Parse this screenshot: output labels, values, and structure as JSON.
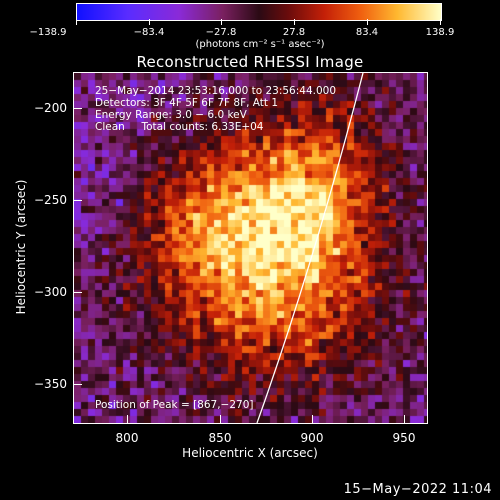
{
  "colorbar": {
    "labels": [
      "−138.9",
      "−83.4",
      "−27.8",
      "27.8",
      "83.4",
      "138.9"
    ],
    "units": "(photons cm⁻² s⁻¹ asec⁻²)",
    "colors": [
      "#1010ff",
      "#8a2ad8",
      "#2b0a14",
      "#c42008",
      "#ffb830",
      "#ffffc8"
    ]
  },
  "plot": {
    "title": "Reconstructed RHESSI Image",
    "xlabel": "Heliocentric X (arcsec)",
    "ylabel": "Heliocentric Y (arcsec)",
    "xticks": [
      "800",
      "850",
      "900",
      "950"
    ],
    "yticks": [
      "−200",
      "−250",
      "−300",
      "−350"
    ],
    "xlim": [
      770,
      962
    ],
    "ylim": [
      -372,
      -180
    ],
    "info": {
      "time": "25−May−2014 23:53:16.000 to 23:56:44.000",
      "detectors": "Detectors: 3F 4F 5F 6F 7F 8F, Att 1",
      "energy": "Energy Range: 3.0 − 6.0 keV",
      "clean": "Clean     Total counts: 6.33E+04"
    },
    "peak": "Position of Peak = [867,−270]"
  },
  "timestamp": "15−May−2022 11:04"
}
